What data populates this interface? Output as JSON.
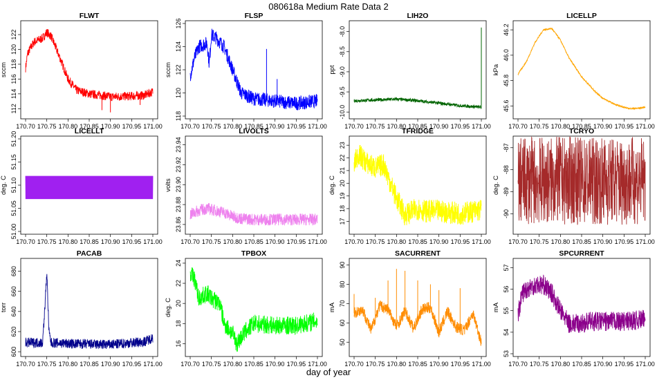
{
  "title": "080618a   Medium Rate Data 2",
  "xlabel": "day of year",
  "x_range": [
    170.7,
    171.0
  ],
  "x_ticks": [
    "170.70",
    "170.75",
    "170.80",
    "170.85",
    "170.90",
    "170.95",
    "171.00"
  ],
  "chart_data": [
    {
      "type": "line",
      "title": "FLWT",
      "ylabel": "sccm",
      "color": "#ff0000",
      "ylim": [
        111,
        123.5
      ],
      "yticks": [
        112,
        114,
        116,
        118,
        120,
        122
      ],
      "x": [
        170.7,
        170.705,
        170.72,
        170.74,
        170.75,
        170.76,
        170.78,
        170.8,
        170.82,
        170.85,
        170.88,
        170.9,
        170.95,
        170.98,
        171.0
      ],
      "values": [
        117.5,
        119.5,
        121,
        121.5,
        122.3,
        121.8,
        119,
        116,
        114.5,
        114,
        113.8,
        113.6,
        113.7,
        113.8,
        114.3
      ],
      "noise": 0.6,
      "spikes": [
        [
          170.88,
          111.8
        ],
        [
          170.9,
          111.5
        ],
        [
          170.97,
          112.5
        ]
      ]
    },
    {
      "type": "line",
      "title": "FLSP",
      "ylabel": "sccm",
      "color": "#0000ff",
      "ylim": [
        118,
        126
      ],
      "yticks": [
        118,
        120,
        122,
        124,
        126
      ],
      "x": [
        170.7,
        170.71,
        170.72,
        170.74,
        170.745,
        170.75,
        170.76,
        170.78,
        170.8,
        170.82,
        170.85,
        170.9,
        170.95,
        171.0
      ],
      "values": [
        121.5,
        123,
        124,
        124.3,
        122.5,
        125,
        124.8,
        124,
        122,
        120,
        119.5,
        119.3,
        119.1,
        119.3
      ],
      "noise": 0.6,
      "spikes": [
        [
          170.88,
          123.8
        ],
        [
          170.905,
          121.2
        ]
      ]
    },
    {
      "type": "line",
      "title": "LIH2O",
      "ylabel": "ppt",
      "color": "#006400",
      "ylim": [
        -10.1,
        -7.8
      ],
      "yticks": [
        -10,
        -9.5,
        -9,
        -8.5,
        -8
      ],
      "ytick_labels": [
        "-10.0",
        "-9.5",
        "-9.0",
        "-8.5",
        "-8.0"
      ],
      "x": [
        170.7,
        170.75,
        170.8,
        170.85,
        170.9,
        170.95,
        171.0
      ],
      "values": [
        -9.72,
        -9.7,
        -9.68,
        -9.72,
        -9.78,
        -9.84,
        -9.88
      ],
      "noise": 0.04,
      "spikes": [
        [
          171.0,
          -7.9
        ]
      ]
    },
    {
      "type": "line",
      "title": "LICELLP",
      "ylabel": "kPa",
      "color": "#ffa500",
      "ylim": [
        45.52,
        46.25
      ],
      "yticks": [
        45.6,
        45.8,
        46.0,
        46.2
      ],
      "ytick_labels": [
        "45.6",
        "45.8",
        "46.0",
        "46.2"
      ],
      "x": [
        170.7,
        170.72,
        170.74,
        170.76,
        170.78,
        170.8,
        170.82,
        170.85,
        170.88,
        170.9,
        170.93,
        170.96,
        170.98,
        171.0
      ],
      "values": [
        45.85,
        45.95,
        46.1,
        46.2,
        46.21,
        46.12,
        45.98,
        45.83,
        45.72,
        45.66,
        45.61,
        45.58,
        45.58,
        45.59
      ],
      "noise": 0.006,
      "spikes": []
    },
    {
      "type": "line",
      "title": "LICELLT",
      "ylabel": "deg. C",
      "color": "#a020f0",
      "ylim": [
        51.0,
        51.2
      ],
      "yticks": [
        51.0,
        51.05,
        51.1,
        51.15,
        51.2
      ],
      "ytick_labels": [
        "51.00",
        "51.05",
        "51.10",
        "51.15",
        "51.20"
      ],
      "x": [
        170.7,
        171.0
      ],
      "values": [
        51.095,
        51.095
      ],
      "band": [
        51.07,
        51.12
      ],
      "noise": 0,
      "spikes": []
    },
    {
      "type": "line",
      "title": "LIVOLTS",
      "ylabel": "volts",
      "color": "#ee82ee",
      "ylim": [
        23.853,
        23.946
      ],
      "yticks": [
        23.86,
        23.88,
        23.9,
        23.92,
        23.94
      ],
      "ytick_labels": [
        "23.86",
        "23.88",
        "23.90",
        "23.92",
        "23.94"
      ],
      "x": [
        170.7,
        170.72,
        170.74,
        170.76,
        170.78,
        170.8,
        170.82,
        170.85,
        170.9,
        170.95,
        171.0
      ],
      "values": [
        23.87,
        23.874,
        23.876,
        23.874,
        23.872,
        23.868,
        23.866,
        23.865,
        23.865,
        23.865,
        23.865
      ],
      "noise": 0.006,
      "spikes": []
    },
    {
      "type": "line",
      "title": "TFRIDGE",
      "ylabel": "deg. C",
      "color": "#ffff00",
      "ylim": [
        16.2,
        23.5
      ],
      "yticks": [
        17,
        18,
        19,
        20,
        21,
        22,
        23
      ],
      "x": [
        170.7,
        170.71,
        170.73,
        170.75,
        170.77,
        170.78,
        170.8,
        170.82,
        170.85,
        170.87,
        170.9,
        170.95,
        171.0
      ],
      "values": [
        21.5,
        22.3,
        21.6,
        21.2,
        21.5,
        20.5,
        18.8,
        17.5,
        18.0,
        17.8,
        17.8,
        17.6,
        17.9
      ],
      "noise": 0.9,
      "spikes": []
    },
    {
      "type": "line",
      "title": "TCRYO",
      "ylabel": "deg. C",
      "color": "#a52a2a",
      "ylim": [
        -90.8,
        -86.6
      ],
      "yticks": [
        -90,
        -89,
        -88,
        -87
      ],
      "x": [
        170.7,
        171.0
      ],
      "values": [
        -88.5,
        -88.5
      ],
      "noise": 2.0,
      "spikes": []
    },
    {
      "type": "line",
      "title": "PACAB",
      "ylabel": "torr",
      "color": "#00008b",
      "ylim": [
        598,
        690
      ],
      "yticks": [
        600,
        620,
        640,
        660,
        680
      ],
      "x": [
        170.7,
        170.74,
        170.745,
        170.75,
        170.755,
        170.76,
        170.8,
        170.9,
        170.98,
        171.0
      ],
      "values": [
        609,
        609,
        640,
        680,
        620,
        609,
        608,
        607,
        610,
        614
      ],
      "noise": 5,
      "spikes": []
    },
    {
      "type": "line",
      "title": "TPBOX",
      "ylabel": "deg. C",
      "color": "#00ff00",
      "ylim": [
        15,
        24.2
      ],
      "yticks": [
        16,
        18,
        20,
        22,
        24
      ],
      "x": [
        170.7,
        170.71,
        170.72,
        170.74,
        170.75,
        170.77,
        170.78,
        170.8,
        170.81,
        170.83,
        170.85,
        170.9,
        170.95,
        171.0
      ],
      "values": [
        23,
        22.5,
        20.5,
        21,
        20.5,
        20,
        18,
        17,
        16,
        17.2,
        18,
        17.8,
        17.8,
        18.3
      ],
      "noise": 0.9,
      "spikes": []
    },
    {
      "type": "line",
      "title": "SACURRENT",
      "ylabel": "mA",
      "color": "#ff8c00",
      "ylim": [
        44,
        92
      ],
      "yticks": [
        50,
        60,
        70,
        80,
        90
      ],
      "x": [
        170.7,
        170.72,
        170.74,
        170.76,
        170.78,
        170.8,
        170.82,
        170.84,
        170.86,
        170.88,
        170.9,
        170.92,
        170.94,
        170.96,
        170.98,
        171.0
      ],
      "values": [
        65,
        67,
        56,
        69,
        67,
        58,
        66,
        57,
        67,
        68,
        55,
        66,
        58,
        56,
        65,
        50
      ],
      "noise": 3,
      "spikes": [
        [
          170.7,
          75
        ],
        [
          170.75,
          73
        ],
        [
          170.78,
          82
        ],
        [
          170.8,
          88
        ],
        [
          170.82,
          87
        ],
        [
          170.85,
          82
        ],
        [
          170.88,
          80
        ],
        [
          170.9,
          77
        ],
        [
          170.95,
          78
        ]
      ]
    },
    {
      "type": "line",
      "title": "SPCURRENT",
      "ylabel": "mA",
      "color": "#8b008b",
      "ylim": [
        53,
        57.3
      ],
      "yticks": [
        53,
        54,
        55,
        56,
        57
      ],
      "x": [
        170.7,
        170.71,
        170.72,
        170.74,
        170.76,
        170.78,
        170.8,
        170.82,
        170.85,
        170.87,
        170.9,
        170.95,
        171.0
      ],
      "values": [
        54.8,
        55.8,
        56,
        56.2,
        56.2,
        55.8,
        55,
        54.4,
        54.4,
        54.5,
        54.5,
        54.5,
        54.6
      ],
      "noise": 0.45,
      "spikes": []
    }
  ]
}
